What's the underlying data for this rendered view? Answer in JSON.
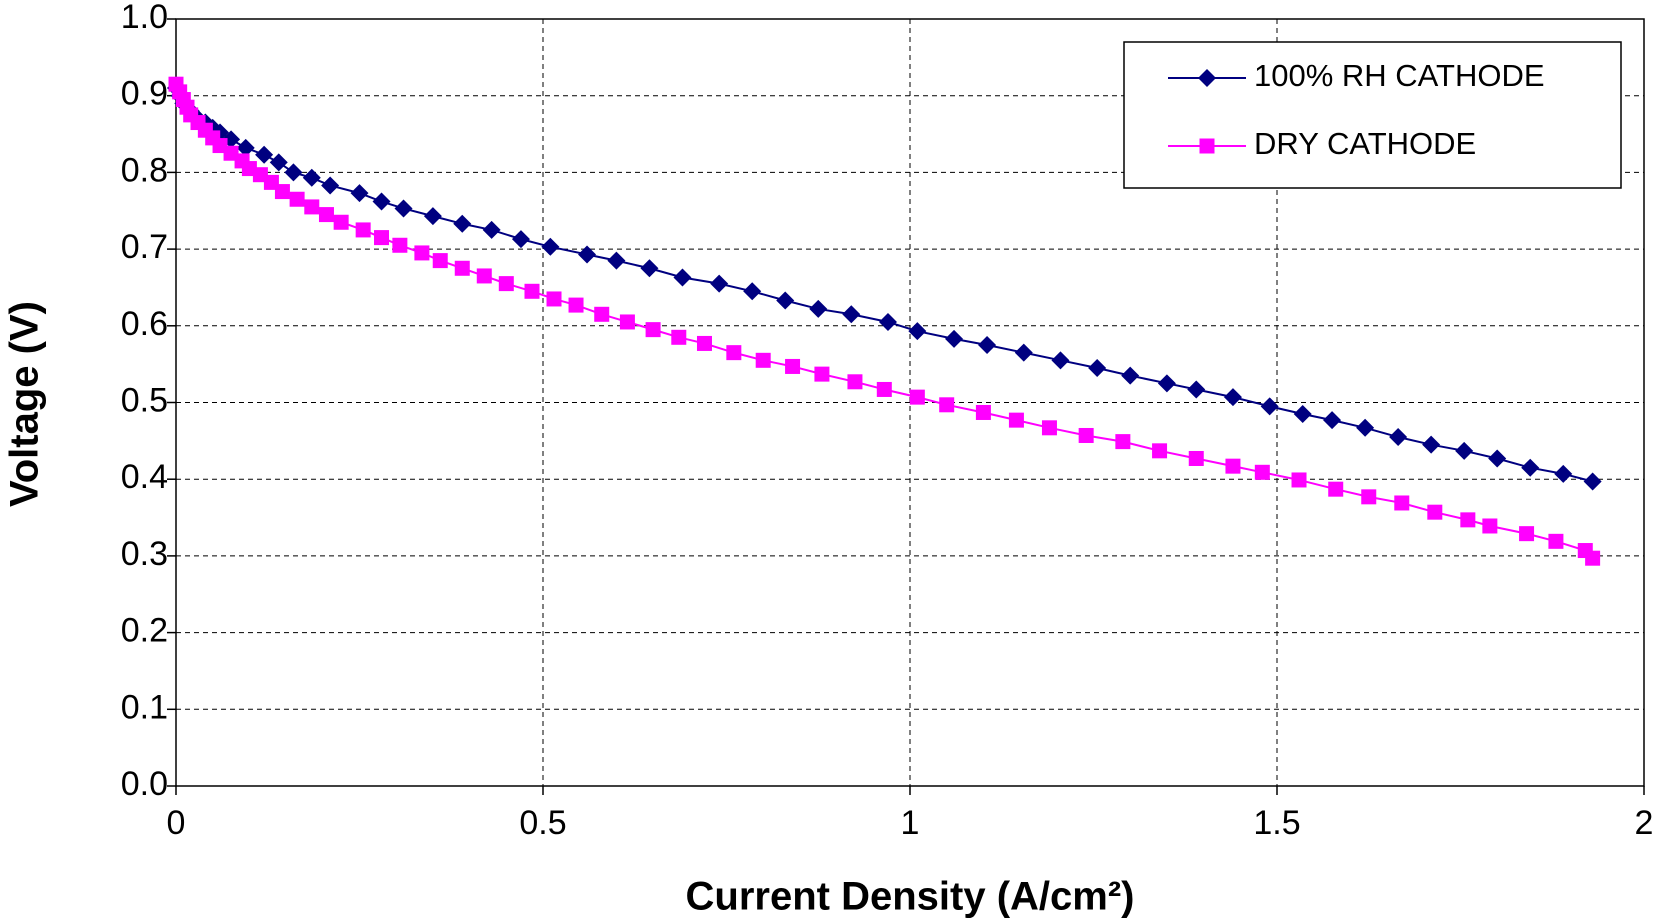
{
  "chart_data": {
    "type": "line",
    "xlabel": "Current Density (A/cm²)",
    "ylabel": "Voltage (V)",
    "xlim": [
      0,
      2
    ],
    "ylim": [
      0,
      1
    ],
    "xticks": [
      0,
      0.5,
      1,
      1.5,
      2
    ],
    "yticks": [
      {
        "value": 0,
        "label": "0.0"
      },
      0.1,
      0.2,
      0.3,
      0.4,
      0.5,
      0.6,
      0.7,
      0.8,
      0.9,
      {
        "value": 1,
        "label": "1.0"
      }
    ],
    "grid": true,
    "legend": "upper right",
    "series": [
      {
        "name": "100% RH CATHODE",
        "color": "#000080",
        "marker": "diamond",
        "x": [
          0,
          0.005,
          0.01,
          0.02,
          0.03,
          0.04,
          0.05,
          0.06,
          0.075,
          0.095,
          0.12,
          0.14,
          0.16,
          0.185,
          0.21,
          0.25,
          0.28,
          0.31,
          0.35,
          0.39,
          0.43,
          0.47,
          0.51,
          0.56,
          0.6,
          0.645,
          0.69,
          0.74,
          0.785,
          0.83,
          0.875,
          0.92,
          0.97,
          1.01,
          1.06,
          1.105,
          1.155,
          1.205,
          1.255,
          1.3,
          1.35,
          1.39,
          1.44,
          1.49,
          1.535,
          1.575,
          1.62,
          1.665,
          1.71,
          1.755,
          1.8,
          1.845,
          1.89,
          1.93
        ],
        "values": [
          0.91,
          0.9,
          0.89,
          0.88,
          0.87,
          0.865,
          0.858,
          0.852,
          0.843,
          0.832,
          0.823,
          0.813,
          0.8,
          0.793,
          0.783,
          0.773,
          0.762,
          0.753,
          0.743,
          0.733,
          0.725,
          0.713,
          0.703,
          0.693,
          0.685,
          0.675,
          0.663,
          0.655,
          0.645,
          0.633,
          0.622,
          0.615,
          0.605,
          0.593,
          0.583,
          0.575,
          0.565,
          0.555,
          0.545,
          0.535,
          0.525,
          0.517,
          0.507,
          0.495,
          0.485,
          0.477,
          0.467,
          0.455,
          0.445,
          0.437,
          0.427,
          0.415,
          0.407,
          0.397
        ]
      },
      {
        "name": "DRY CATHODE",
        "color": "#ff00ff",
        "marker": "square",
        "x": [
          0,
          0.005,
          0.01,
          0.015,
          0.02,
          0.03,
          0.04,
          0.05,
          0.06,
          0.075,
          0.09,
          0.1,
          0.115,
          0.13,
          0.145,
          0.165,
          0.185,
          0.205,
          0.225,
          0.255,
          0.28,
          0.305,
          0.335,
          0.36,
          0.39,
          0.42,
          0.45,
          0.485,
          0.515,
          0.545,
          0.58,
          0.615,
          0.65,
          0.685,
          0.72,
          0.76,
          0.8,
          0.84,
          0.88,
          0.925,
          0.965,
          1.01,
          1.05,
          1.1,
          1.145,
          1.19,
          1.24,
          1.29,
          1.34,
          1.39,
          1.44,
          1.48,
          1.53,
          1.58,
          1.625,
          1.67,
          1.715,
          1.76,
          1.79,
          1.84,
          1.88,
          1.92,
          1.93
        ],
        "values": [
          0.915,
          0.905,
          0.895,
          0.885,
          0.875,
          0.865,
          0.855,
          0.845,
          0.835,
          0.825,
          0.815,
          0.805,
          0.797,
          0.787,
          0.775,
          0.765,
          0.755,
          0.745,
          0.735,
          0.725,
          0.715,
          0.705,
          0.695,
          0.685,
          0.675,
          0.665,
          0.655,
          0.645,
          0.635,
          0.627,
          0.615,
          0.605,
          0.595,
          0.585,
          0.577,
          0.565,
          0.555,
          0.547,
          0.537,
          0.527,
          0.517,
          0.507,
          0.497,
          0.487,
          0.477,
          0.467,
          0.457,
          0.449,
          0.437,
          0.427,
          0.417,
          0.409,
          0.399,
          0.387,
          0.377,
          0.369,
          0.357,
          0.347,
          0.339,
          0.329,
          0.319,
          0.307,
          0.297
        ]
      }
    ]
  }
}
